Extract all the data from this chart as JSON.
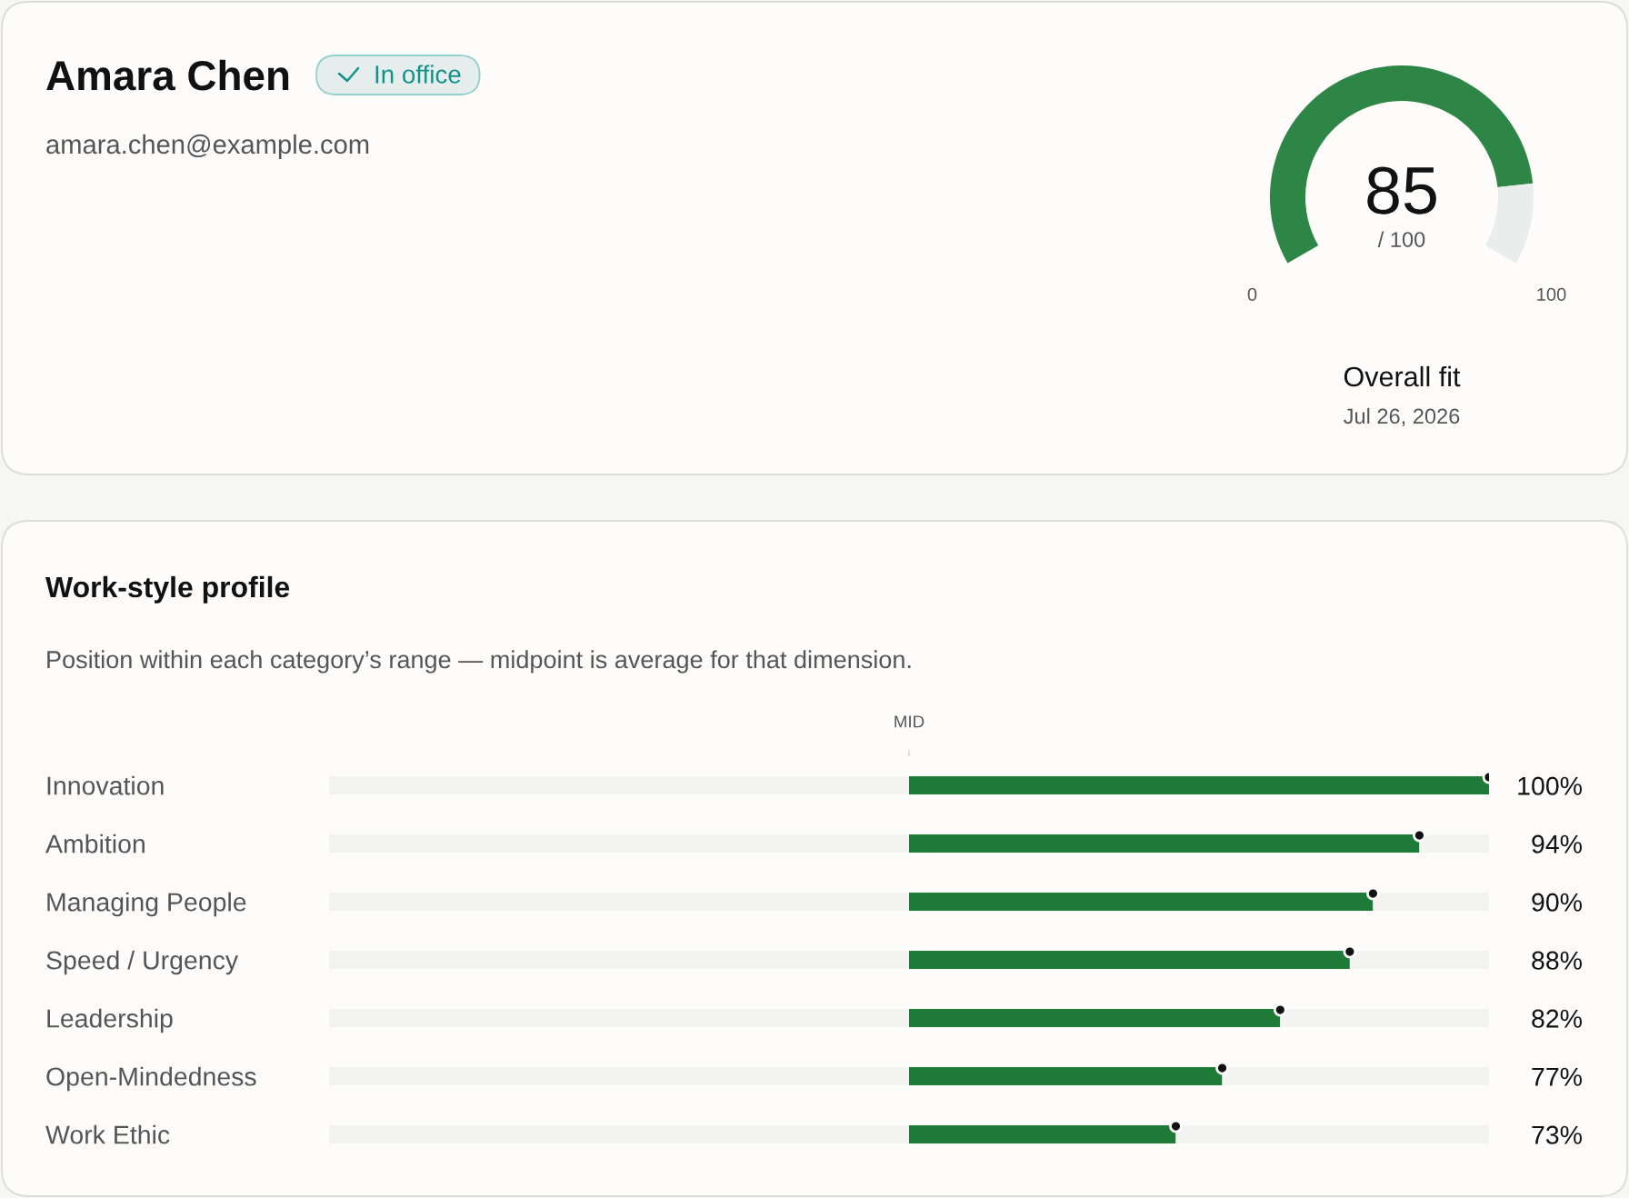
{
  "chart_data": [
    {
      "type": "other",
      "title": "Amara Chen",
      "subtitle": "amara.chen@example.com",
      "annotations": [
        "In office"
      ]
    },
    {
      "type": "donut",
      "title": "Overall fit",
      "subtitle": "Jul 26, 2026",
      "categories": [
        null,
        null
      ],
      "values": [
        85,
        15
      ],
      "colors": [
        "#2e8646",
        "#e9edeb"
      ],
      "value_labels": [
        "85",
        null
      ],
      "annotations": [
        "/ 100",
        "0",
        "100"
      ]
    },
    {
      "type": "bar",
      "orientation": "horizontal",
      "stacked": true,
      "title": "Work-style profile",
      "subtitle": "Position within each category’s range — midpoint is average for that dimension.",
      "categories": [
        "Innovation",
        "Ambition",
        "Managing People",
        "Speed / Urgency",
        "Leadership",
        "Open-Mindedness",
        "Work Ethic"
      ],
      "xlim": [
        0,
        100
      ],
      "xticks": [
        {
          "value": 50,
          "label": "MID"
        }
      ],
      "series": [
        {
          "type": "bar",
          "color": "#f3f3f1",
          "values": [
            50,
            50,
            50,
            50,
            50,
            50,
            50
          ]
        },
        {
          "type": "bar",
          "color": "#1e7b37",
          "values": [
            50,
            44,
            40,
            38,
            32,
            27,
            23
          ]
        },
        {
          "type": "bar",
          "color": "#f3f3f1",
          "values": [
            null,
            6,
            10,
            12,
            18,
            23,
            27
          ]
        },
        {
          "type": "scatter",
          "color": "#111111",
          "marker": "circle",
          "values": [
            100,
            94,
            90,
            88,
            82,
            77,
            73
          ],
          "value_labels": [
            "100%",
            "94%",
            "90%",
            "88%",
            "82%",
            "77%",
            "73%"
          ]
        }
      ]
    }
  ]
}
